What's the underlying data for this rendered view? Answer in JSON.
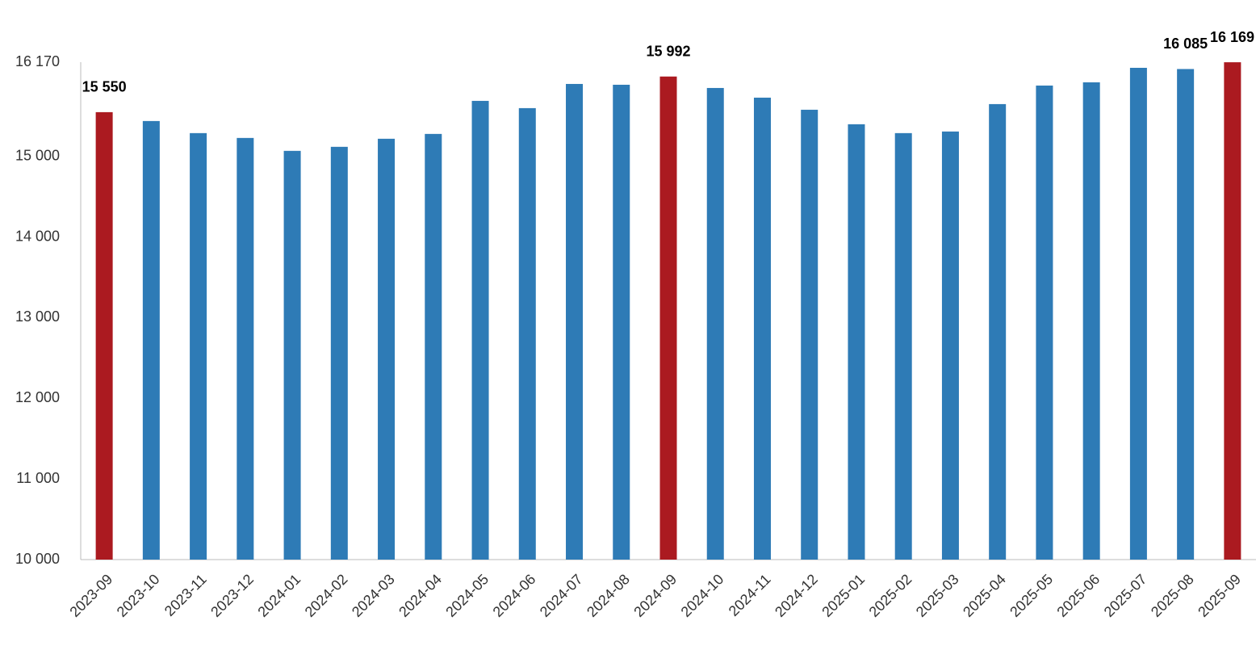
{
  "chart_data": {
    "type": "bar",
    "categories": [
      "2023-09",
      "2023-10",
      "2023-11",
      "2023-12",
      "2024-01",
      "2024-02",
      "2024-03",
      "2024-04",
      "2024-05",
      "2024-06",
      "2024-07",
      "2024-08",
      "2024-09",
      "2024-10",
      "2024-11",
      "2024-12",
      "2025-01",
      "2025-02",
      "2025-03",
      "2025-04",
      "2025-05",
      "2025-06",
      "2025-07",
      "2025-08",
      "2025-09"
    ],
    "values": [
      15550,
      15440,
      15290,
      15230,
      15070,
      15120,
      15220,
      15280,
      15690,
      15600,
      15900,
      15890,
      15992,
      15850,
      15730,
      15580,
      15400,
      15290,
      15310,
      15650,
      15880,
      15920,
      16100,
      16085,
      16169
    ],
    "value_labels": [
      "15 550",
      null,
      null,
      null,
      null,
      null,
      null,
      null,
      null,
      null,
      null,
      null,
      "15 992",
      null,
      null,
      null,
      null,
      null,
      null,
      null,
      null,
      null,
      null,
      "16 085",
      "16 169"
    ],
    "colors": [
      "#ab1a20",
      "#2e7bb6",
      "#2e7bb6",
      "#2e7bb6",
      "#2e7bb6",
      "#2e7bb6",
      "#2e7bb6",
      "#2e7bb6",
      "#2e7bb6",
      "#2e7bb6",
      "#2e7bb6",
      "#2e7bb6",
      "#ab1a20",
      "#2e7bb6",
      "#2e7bb6",
      "#2e7bb6",
      "#2e7bb6",
      "#2e7bb6",
      "#2e7bb6",
      "#2e7bb6",
      "#2e7bb6",
      "#2e7bb6",
      "#2e7bb6",
      "#2e7bb6",
      "#ab1a20"
    ],
    "ylim": [
      10000,
      16170
    ],
    "yticks": [
      {
        "value": 10000,
        "label": "10 000"
      },
      {
        "value": 11000,
        "label": "11 000"
      },
      {
        "value": 12000,
        "label": "12 000"
      },
      {
        "value": 13000,
        "label": "13 000"
      },
      {
        "value": 14000,
        "label": "14 000"
      },
      {
        "value": 15000,
        "label": "15 000"
      },
      {
        "value": 16170,
        "label": "16 170"
      }
    ],
    "grid": false
  }
}
